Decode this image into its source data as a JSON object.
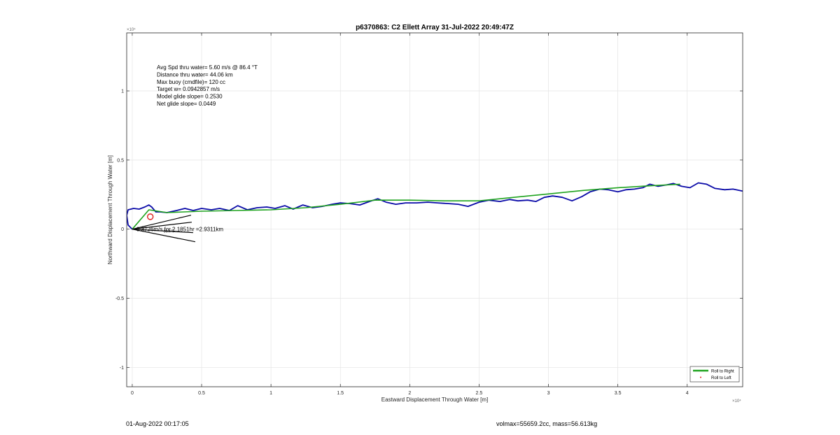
{
  "chart_data": {
    "type": "line",
    "title": "p6370863: C2 Ellett Array 31-Jul-2022 20:49:47Z",
    "xlabel": "Eastward Displacement Through Water [m]",
    "ylabel": "Northward Displacement Through Water [m]",
    "x_exponent_label": "×10⁴",
    "y_exponent_label": "×10⁴",
    "xlim": [
      -0.04,
      4.4
    ],
    "ylim": [
      -1.14,
      1.42
    ],
    "x_ticks": [
      0,
      0.5,
      1,
      1.5,
      2,
      2.5,
      3,
      3.5,
      4
    ],
    "x_tick_labels": [
      "0",
      "0.5",
      "1",
      "1.5",
      "2",
      "2.5",
      "3",
      "3.5",
      "4"
    ],
    "y_ticks": [
      -1,
      -0.5,
      0,
      0.5,
      1
    ],
    "y_tick_labels": [
      "-1",
      "-0.5",
      "0",
      "0.5",
      "1"
    ],
    "grid": true,
    "legend_position": "bottom-right",
    "annotations": [
      "Avg Spd thru water=  5.60 m/s @  86.4 °T",
      "Distance thru water= 44.06 km",
      "Max buoy (cmdfile)= 120 cc",
      "Target w= 0.0942857 m/s",
      "Model glide slope= 0.2530",
      "Net glide slope= 0.0449"
    ],
    "current_label": "0.3726m/s for 2.1851hr =2.9311km",
    "current_angle_label": "86.4°T",
    "marker_circle": {
      "x": 0.13,
      "y": 0.09
    },
    "series": [
      {
        "name": "Roll to Right",
        "color": "#1fa31f",
        "points": [
          [
            0,
            0
          ],
          [
            0.12,
            0.14
          ],
          [
            0.25,
            0.12
          ],
          [
            0.5,
            0.13
          ],
          [
            0.75,
            0.135
          ],
          [
            1.0,
            0.14
          ],
          [
            1.25,
            0.155
          ],
          [
            1.5,
            0.18
          ],
          [
            1.75,
            0.21
          ],
          [
            2.0,
            0.21
          ],
          [
            2.25,
            0.205
          ],
          [
            2.5,
            0.205
          ],
          [
            2.75,
            0.23
          ],
          [
            3.0,
            0.255
          ],
          [
            3.25,
            0.28
          ],
          [
            3.5,
            0.3
          ],
          [
            3.75,
            0.315
          ],
          [
            3.95,
            0.325
          ]
        ]
      },
      {
        "name": "Roll to Left",
        "color": "#e02020",
        "points": []
      },
      {
        "name": "",
        "color": "#0a0aa8",
        "points": [
          [
            0,
            0
          ],
          [
            -0.03,
            0.03
          ],
          [
            -0.04,
            0.1
          ],
          [
            -0.03,
            0.14
          ],
          [
            0.01,
            0.15
          ],
          [
            0.05,
            0.145
          ],
          [
            0.09,
            0.16
          ],
          [
            0.12,
            0.175
          ],
          [
            0.14,
            0.16
          ],
          [
            0.17,
            0.125
          ],
          [
            0.2,
            0.125
          ],
          [
            0.25,
            0.12
          ],
          [
            0.32,
            0.135
          ],
          [
            0.38,
            0.15
          ],
          [
            0.44,
            0.135
          ],
          [
            0.5,
            0.15
          ],
          [
            0.57,
            0.14
          ],
          [
            0.63,
            0.15
          ],
          [
            0.7,
            0.135
          ],
          [
            0.76,
            0.17
          ],
          [
            0.83,
            0.14
          ],
          [
            0.9,
            0.155
          ],
          [
            0.97,
            0.16
          ],
          [
            1.03,
            0.15
          ],
          [
            1.1,
            0.17
          ],
          [
            1.16,
            0.145
          ],
          [
            1.23,
            0.175
          ],
          [
            1.3,
            0.155
          ],
          [
            1.37,
            0.165
          ],
          [
            1.44,
            0.18
          ],
          [
            1.5,
            0.19
          ],
          [
            1.57,
            0.185
          ],
          [
            1.64,
            0.175
          ],
          [
            1.71,
            0.2
          ],
          [
            1.77,
            0.22
          ],
          [
            1.83,
            0.195
          ],
          [
            1.9,
            0.18
          ],
          [
            1.97,
            0.19
          ],
          [
            2.05,
            0.19
          ],
          [
            2.13,
            0.195
          ],
          [
            2.2,
            0.19
          ],
          [
            2.28,
            0.185
          ],
          [
            2.35,
            0.18
          ],
          [
            2.42,
            0.165
          ],
          [
            2.5,
            0.195
          ],
          [
            2.57,
            0.21
          ],
          [
            2.65,
            0.2
          ],
          [
            2.72,
            0.215
          ],
          [
            2.78,
            0.205
          ],
          [
            2.85,
            0.21
          ],
          [
            2.91,
            0.2
          ],
          [
            2.97,
            0.23
          ],
          [
            3.03,
            0.24
          ],
          [
            3.1,
            0.23
          ],
          [
            3.17,
            0.205
          ],
          [
            3.24,
            0.235
          ],
          [
            3.3,
            0.27
          ],
          [
            3.37,
            0.29
          ],
          [
            3.43,
            0.285
          ],
          [
            3.5,
            0.27
          ],
          [
            3.56,
            0.285
          ],
          [
            3.62,
            0.29
          ],
          [
            3.68,
            0.3
          ],
          [
            3.73,
            0.325
          ],
          [
            3.79,
            0.31
          ],
          [
            3.85,
            0.32
          ],
          [
            3.9,
            0.33
          ],
          [
            3.96,
            0.31
          ],
          [
            4.02,
            0.3
          ],
          [
            4.08,
            0.335
          ],
          [
            4.14,
            0.325
          ],
          [
            4.2,
            0.295
          ],
          [
            4.27,
            0.285
          ],
          [
            4.33,
            0.29
          ],
          [
            4.4,
            0.275
          ]
        ]
      }
    ]
  },
  "footer": {
    "left": "01-Aug-2022 00:17:05",
    "right": "volmax=55659.2cc, mass=56.613kg"
  }
}
